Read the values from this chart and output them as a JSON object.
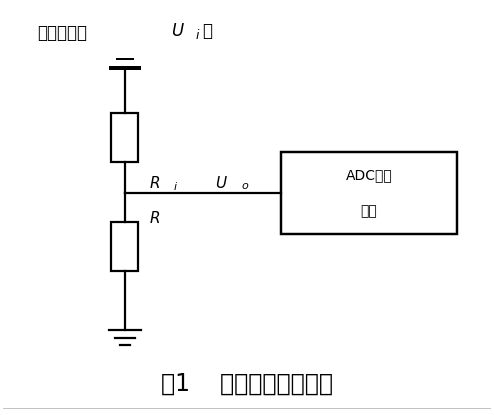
{
  "fig_width": 4.94,
  "fig_height": 4.15,
  "dpi": 100,
  "bg_color": "#ffffff",
  "line_color": "black",
  "line_width": 1.6,
  "title_text": "图1    热敏电阱测量电路",
  "title_fontsize": 18,
  "top_label_cn": "参考电压（",
  "top_label_end": "）",
  "adc_text_line1": "ADC转换",
  "adc_text_line2": "电路"
}
